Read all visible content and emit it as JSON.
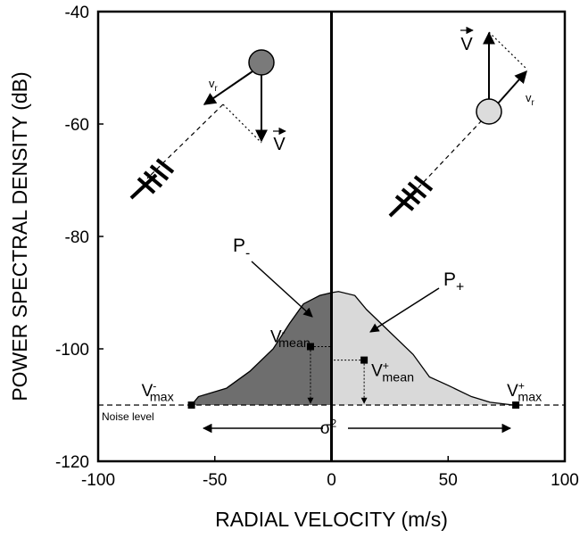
{
  "chart_data": {
    "type": "area",
    "x_label": "RADIAL VELOCITY (m/s)",
    "y_label": "POWER SPECTRAL DENSITY (dB)",
    "xlim": [
      -100,
      100
    ],
    "xticks": [
      -100,
      -50,
      0,
      50,
      100
    ],
    "ylim": [
      -120,
      -40
    ],
    "yticks": [
      -120,
      -100,
      -80,
      -60,
      -40
    ],
    "x": [
      -60,
      -57,
      -45,
      -35,
      -25,
      -18,
      -12,
      -5,
      0,
      3,
      10,
      15,
      25,
      35,
      42,
      50,
      60,
      68,
      78
    ],
    "values": [
      -110,
      -108.5,
      -107,
      -104,
      -100,
      -95.5,
      -92,
      -90.5,
      -90,
      -89.8,
      -90.5,
      -93,
      -97,
      -101,
      -105,
      -106.5,
      -108.5,
      -109.5,
      -110
    ],
    "negative_color": "#6e6e6e",
    "positive_color": "#d9d9d9",
    "noise_level": -110,
    "noise_label": "Noise level",
    "points": [
      {
        "x": -9,
        "y": -99.6,
        "label": {
          "base": "V",
          "sup": "-",
          "sub": "mean"
        }
      },
      {
        "x": 14,
        "y": -102,
        "label": {
          "base": "V",
          "sup": "+",
          "sub": "mean"
        }
      },
      {
        "x": -60,
        "y": -110,
        "label": {
          "base": "V",
          "sup": "-",
          "sub": "max"
        }
      },
      {
        "x": 79,
        "y": -110,
        "label": {
          "base": "V",
          "sup": "+",
          "sub": "max"
        }
      }
    ],
    "p_minus": {
      "base": "P",
      "sub": "-"
    },
    "p_plus": {
      "base": "P",
      "sub": "+"
    },
    "spread_label": {
      "base": "σ",
      "sup": "2"
    },
    "icons": [
      {
        "velocity": "V",
        "radial": {
          "base": "v",
          "sub": "r"
        }
      },
      {
        "velocity": "V",
        "radial": {
          "base": "v",
          "sub": "r"
        }
      }
    ]
  }
}
